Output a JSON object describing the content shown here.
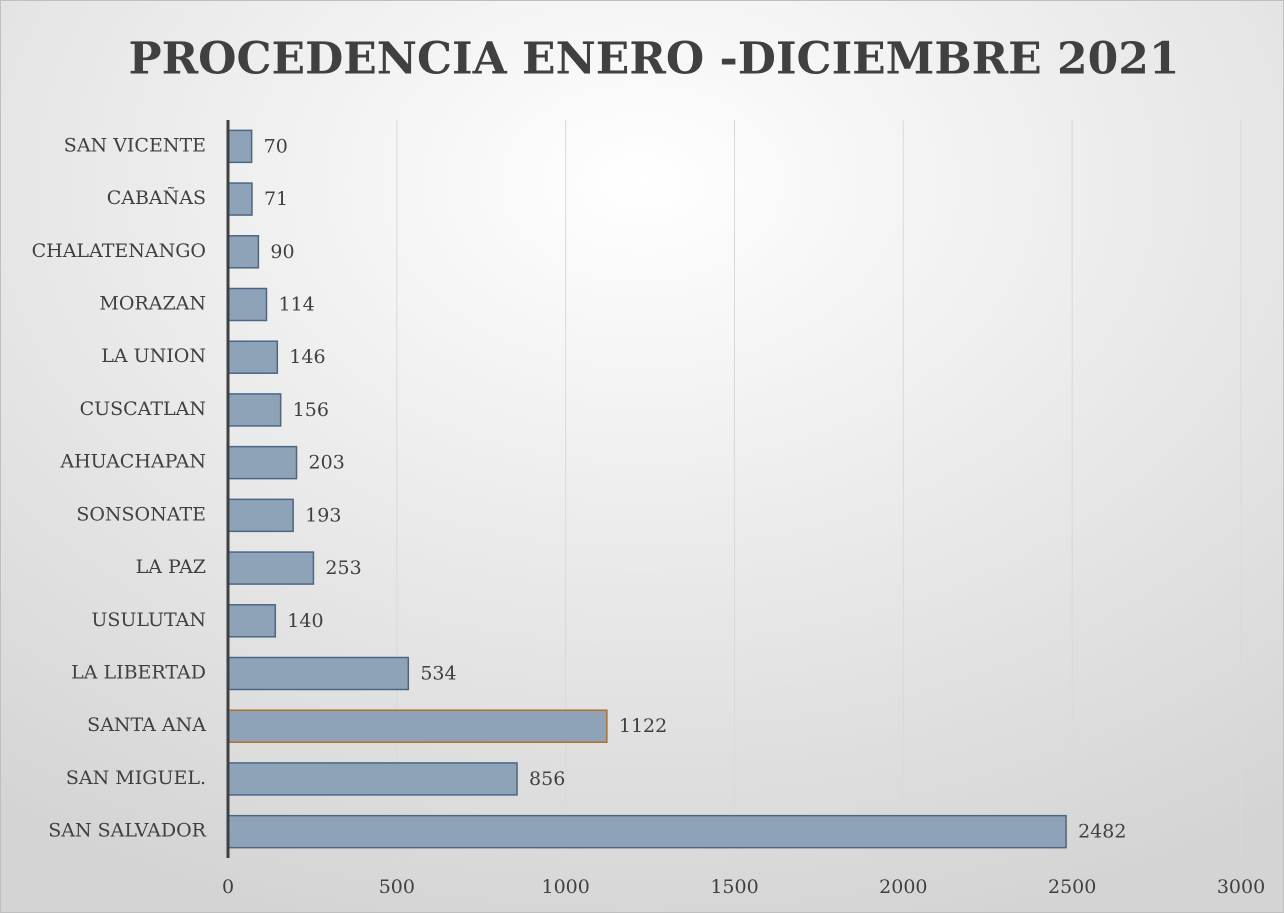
{
  "chart_data": {
    "type": "barh",
    "title": "PROCEDENCIA ENERO -DICIEMBRE 2021",
    "categories": [
      "SAN VICENTE",
      "CABAÑAS",
      "CHALATENANGO",
      "MORAZAN",
      "LA UNION",
      "CUSCATLAN",
      "AHUACHAPAN",
      "SONSONATE",
      "LA PAZ",
      "USULUTAN",
      "LA LIBERTAD",
      "SANTA ANA",
      "SAN MIGUEL.",
      "SAN SALVADOR"
    ],
    "values": [
      70,
      71,
      90,
      114,
      146,
      156,
      203,
      193,
      253,
      140,
      534,
      1122,
      856,
      2482
    ],
    "color": "#8ea3b8",
    "edge_colors": [
      "#4a6785",
      "#4a6785",
      "#4a6785",
      "#4a6785",
      "#4a6785",
      "#4a6785",
      "#4a6785",
      "#4a6785",
      "#4a6785",
      "#4a6785",
      "#4a6785",
      "#b0702a",
      "#4a6785",
      "#4a6785"
    ],
    "xlim": [
      0,
      3000
    ],
    "xticks": [
      0,
      500,
      1000,
      1500,
      2000,
      2500,
      3000
    ],
    "grid": true
  }
}
